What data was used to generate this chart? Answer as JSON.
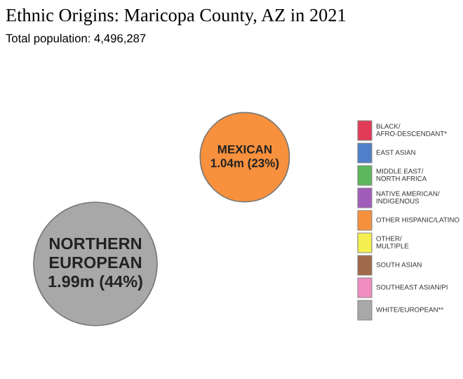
{
  "chart_data": [
    {
      "type": "other",
      "title": "Ethnic Origins: Maricopa County, AZ in 2021",
      "subtitle": "Total population: 4,496,287",
      "categories": [
        "NORTHERN EUROPEAN",
        "MEXICAN"
      ],
      "values": [
        1990000,
        1040000
      ],
      "value_labels": [
        "1.99m (44%)",
        "1.04m (23%)"
      ],
      "colors": [
        "#a8a8a8",
        "#f7913d"
      ]
    },
    {
      "type": "other",
      "categories": [
        "BLACK/ AFRO-DESCENDANT*",
        "EAST ASIAN",
        "MIDDLE EAST/ NORTH AFRICA",
        "NATIVE AMERICAN/ INDIGENOUS",
        "OTHER HISPANIC/LATINO",
        "OTHER/ MULTIPLE",
        "SOUTH ASIAN",
        "SOUTHEAST ASIAN/PI",
        "WHITE/EUROPEAN**"
      ],
      "colors": [
        "#e23b57",
        "#4f7fc8",
        "#5cb85c",
        "#a05cb8",
        "#f7913d",
        "#f5f050",
        "#a0694a",
        "#f08cc0",
        "#a8a8a8"
      ]
    }
  ]
}
